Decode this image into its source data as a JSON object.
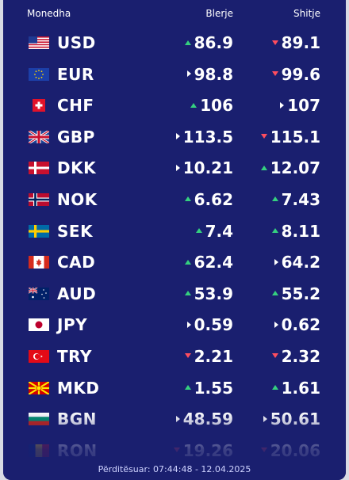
{
  "headers": {
    "currency": "Monedha",
    "buy": "Blerje",
    "sell": "Shitje"
  },
  "rates": [
    {
      "code": "USD",
      "flag": "us-flag",
      "buy": "86.9",
      "buy_trend": "up",
      "sell": "89.1",
      "sell_trend": "down"
    },
    {
      "code": "EUR",
      "flag": "eu-flag",
      "buy": "98.8",
      "buy_trend": "same",
      "sell": "99.6",
      "sell_trend": "down"
    },
    {
      "code": "CHF",
      "flag": "ch-flag",
      "buy": "106",
      "buy_trend": "up",
      "sell": "107",
      "sell_trend": "same"
    },
    {
      "code": "GBP",
      "flag": "gb-flag",
      "buy": "113.5",
      "buy_trend": "same",
      "sell": "115.1",
      "sell_trend": "down"
    },
    {
      "code": "DKK",
      "flag": "dk-flag",
      "buy": "10.21",
      "buy_trend": "same",
      "sell": "12.07",
      "sell_trend": "up"
    },
    {
      "code": "NOK",
      "flag": "no-flag",
      "buy": "6.62",
      "buy_trend": "up",
      "sell": "7.43",
      "sell_trend": "up"
    },
    {
      "code": "SEK",
      "flag": "se-flag",
      "buy": "7.4",
      "buy_trend": "up",
      "sell": "8.11",
      "sell_trend": "up"
    },
    {
      "code": "CAD",
      "flag": "ca-flag",
      "buy": "62.4",
      "buy_trend": "up",
      "sell": "64.2",
      "sell_trend": "same"
    },
    {
      "code": "AUD",
      "flag": "au-flag",
      "buy": "53.9",
      "buy_trend": "up",
      "sell": "55.2",
      "sell_trend": "up"
    },
    {
      "code": "JPY",
      "flag": "jp-flag",
      "buy": "0.59",
      "buy_trend": "same",
      "sell": "0.62",
      "sell_trend": "same"
    },
    {
      "code": "TRY",
      "flag": "tr-flag",
      "buy": "2.21",
      "buy_trend": "down",
      "sell": "2.32",
      "sell_trend": "down"
    },
    {
      "code": "MKD",
      "flag": "mk-flag",
      "buy": "1.55",
      "buy_trend": "up",
      "sell": "1.61",
      "sell_trend": "up"
    },
    {
      "code": "BGN",
      "flag": "bg-flag",
      "buy": "48.59",
      "buy_trend": "same",
      "sell": "50.61",
      "sell_trend": "same"
    },
    {
      "code": "RON",
      "flag": "ro-flag",
      "buy": "19.26",
      "buy_trend": "down",
      "sell": "20.06",
      "sell_trend": "down"
    }
  ],
  "footer": "Përditësuar: 07:44:48 - 12.04.2025",
  "colors": {
    "background": "#1a1f6f",
    "up": "#35d07f",
    "down": "#ff4d5e",
    "text": "#ffffff"
  }
}
